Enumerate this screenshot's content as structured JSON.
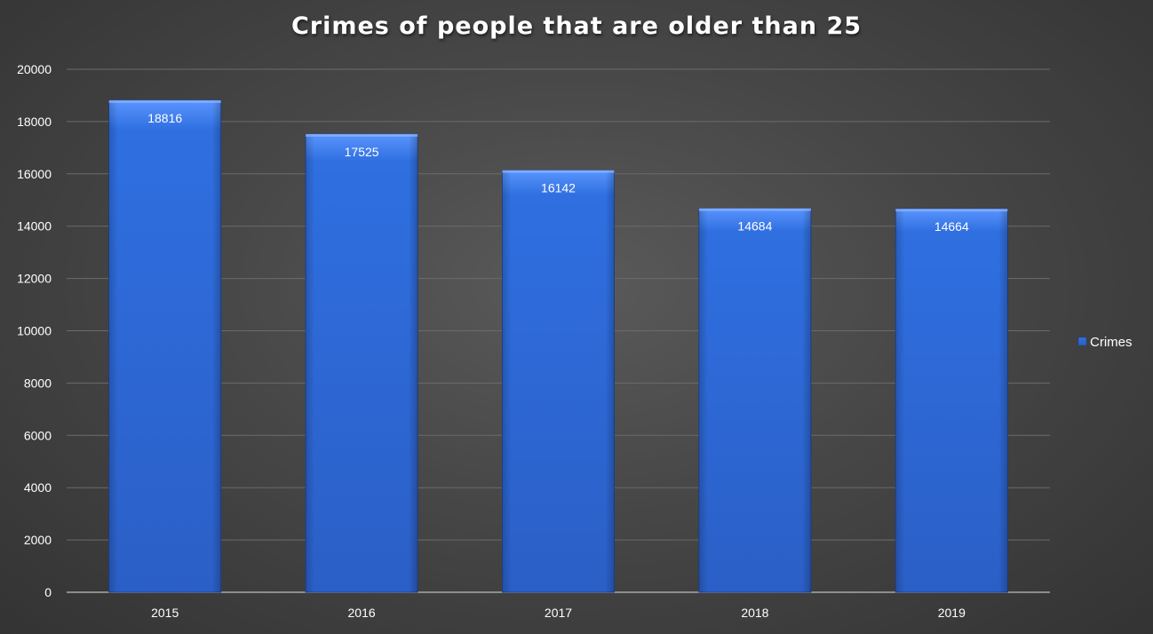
{
  "chart_data": {
    "type": "bar",
    "title": "Crimes of people that are older than 25",
    "xlabel": "",
    "ylabel": "",
    "categories": [
      "2015",
      "2016",
      "2017",
      "2018",
      "2019"
    ],
    "series": [
      {
        "name": "Crimes",
        "values": [
          18816,
          17525,
          16142,
          14684,
          14664
        ]
      }
    ],
    "ylim": [
      0,
      20000
    ],
    "yticks": [
      0,
      2000,
      4000,
      6000,
      8000,
      10000,
      12000,
      14000,
      16000,
      18000,
      20000
    ],
    "data_labels": true,
    "grid": true,
    "legend_position": "right",
    "colors": {
      "bar": "#2f6fe0",
      "bar_top": "#5a95ff",
      "bar_bottom": "#2b5fc7",
      "gridline": "#6b6b6b",
      "axis": "#a8a8a8",
      "text": "#ffffff"
    }
  }
}
